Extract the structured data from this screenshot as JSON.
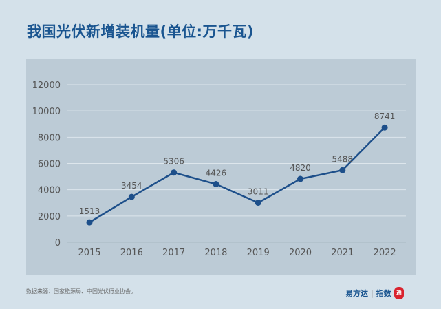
{
  "chart_data": {
    "type": "line",
    "title": "我国光伏新增装机量(单位:万千瓦)",
    "categories": [
      "2015",
      "2016",
      "2017",
      "2018",
      "2019",
      "2020",
      "2021",
      "2022"
    ],
    "values": [
      1513,
      3454,
      5306,
      4426,
      3011,
      4820,
      5488,
      8741
    ],
    "yticks": [
      0,
      2000,
      4000,
      6000,
      8000,
      10000,
      12000
    ],
    "ylim": [
      0,
      12000
    ],
    "grid": true,
    "line_color": "#1d4f8a"
  },
  "footer": {
    "source": "数据来源：国家能源局、中国光伏行业协会。",
    "brand": "易方达",
    "brand_sub": "指数",
    "seal": "通"
  }
}
